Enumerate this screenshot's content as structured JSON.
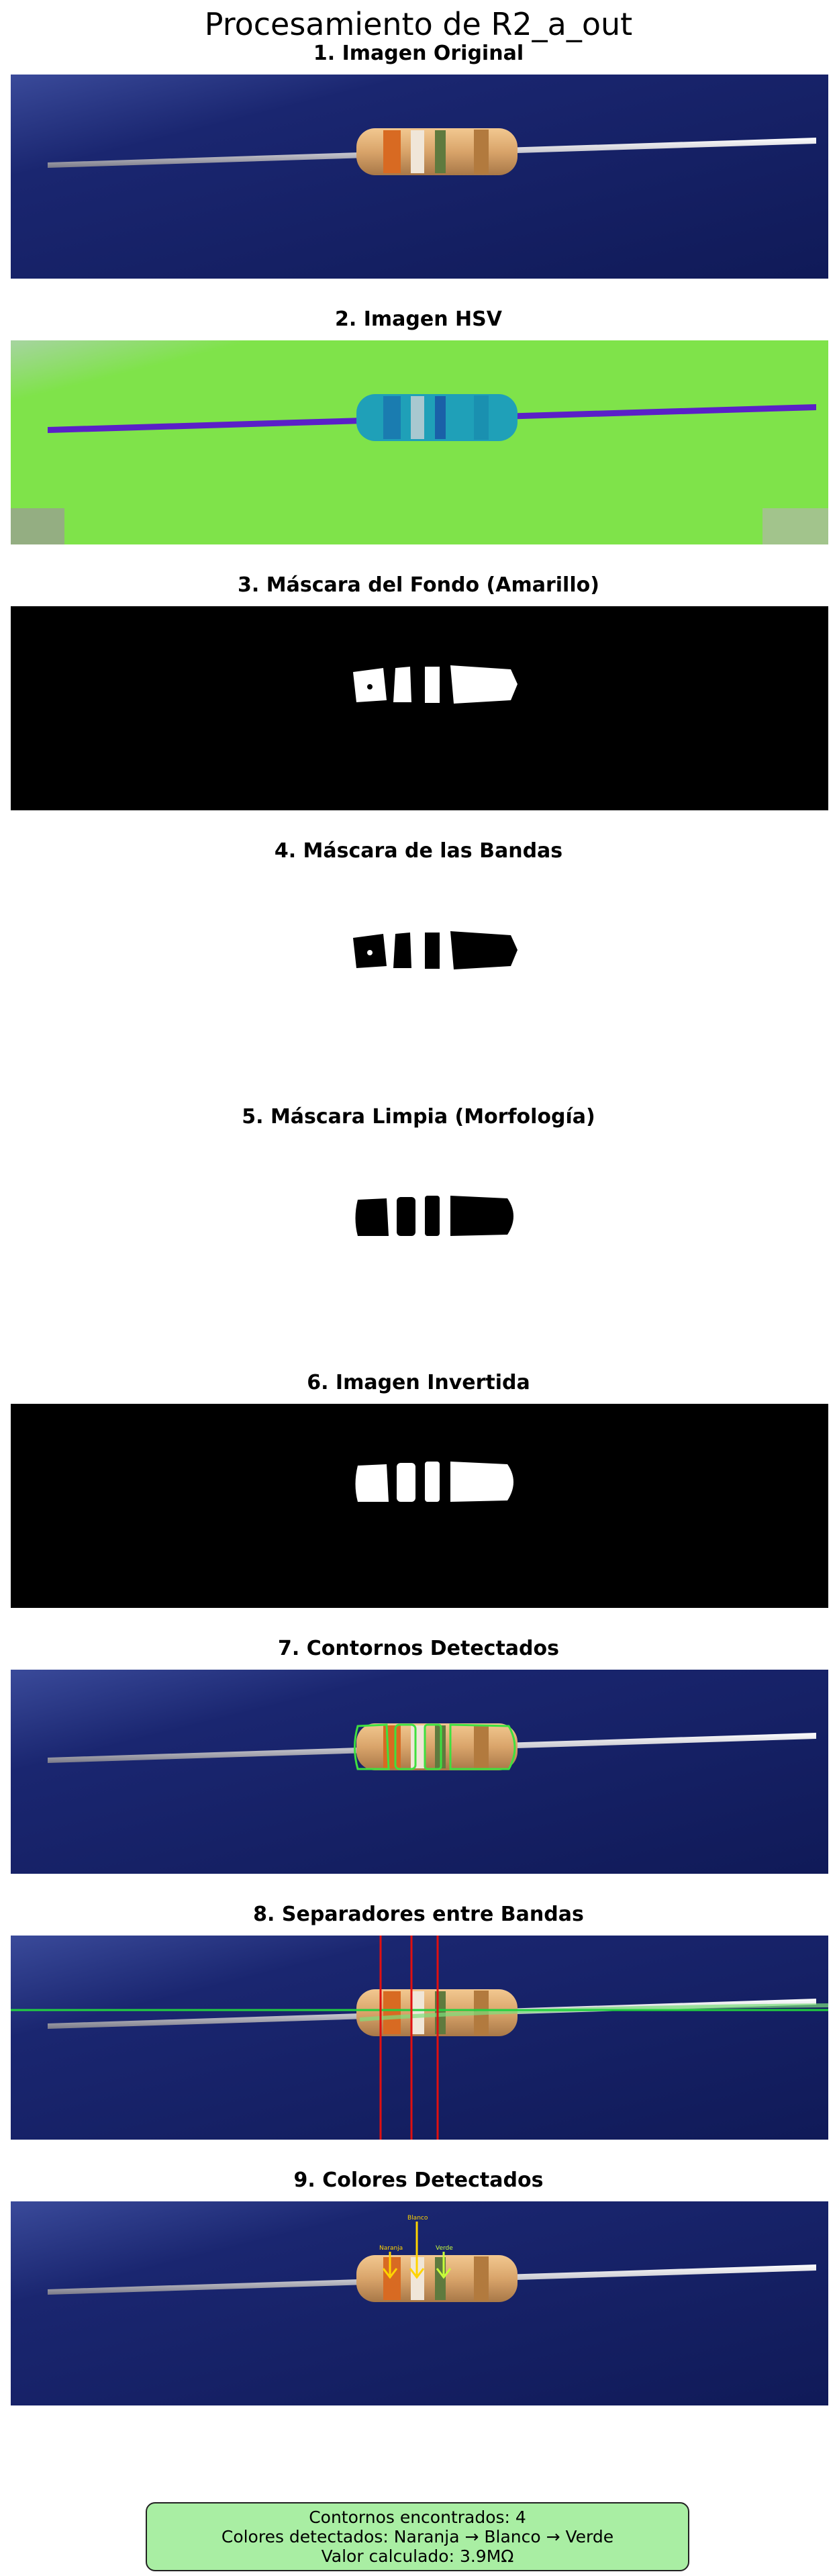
{
  "figure": {
    "title": "Procesamiento de R2_a_out"
  },
  "panels": [
    {
      "title": "1. Imagen Original"
    },
    {
      "title": "2. Imagen HSV"
    },
    {
      "title": "3. Máscara del Fondo (Amarillo)"
    },
    {
      "title": "4. Máscara de las Bandas"
    },
    {
      "title": "5. Máscara Limpia (Morfología)"
    },
    {
      "title": "6. Imagen Invertida"
    },
    {
      "title": "7. Contornos Detectados"
    },
    {
      "title": "8. Separadores entre Bandas"
    },
    {
      "title": "9. Colores Detectados"
    }
  ],
  "annotations": {
    "band1": "Naranja",
    "band2": "Blanco",
    "band3": "Verde",
    "band1_color": "#ffd400",
    "band2_color": "#ffd400",
    "band3_color": "#c8ff3a"
  },
  "summary": {
    "line1": "Contornos encontrados: 4",
    "line2": "Colores detectados: Naranja → Blanco → Verde",
    "line3": "Valor calculado: 3.9MΩ"
  },
  "colors": {
    "background_blue": "#121c5e",
    "hsv_green": "#7fe34a",
    "separator_red": "#e01010",
    "axis_line_green": "#22d040",
    "contour_green": "#3fe03f",
    "summary_box": "#a9eea3"
  }
}
